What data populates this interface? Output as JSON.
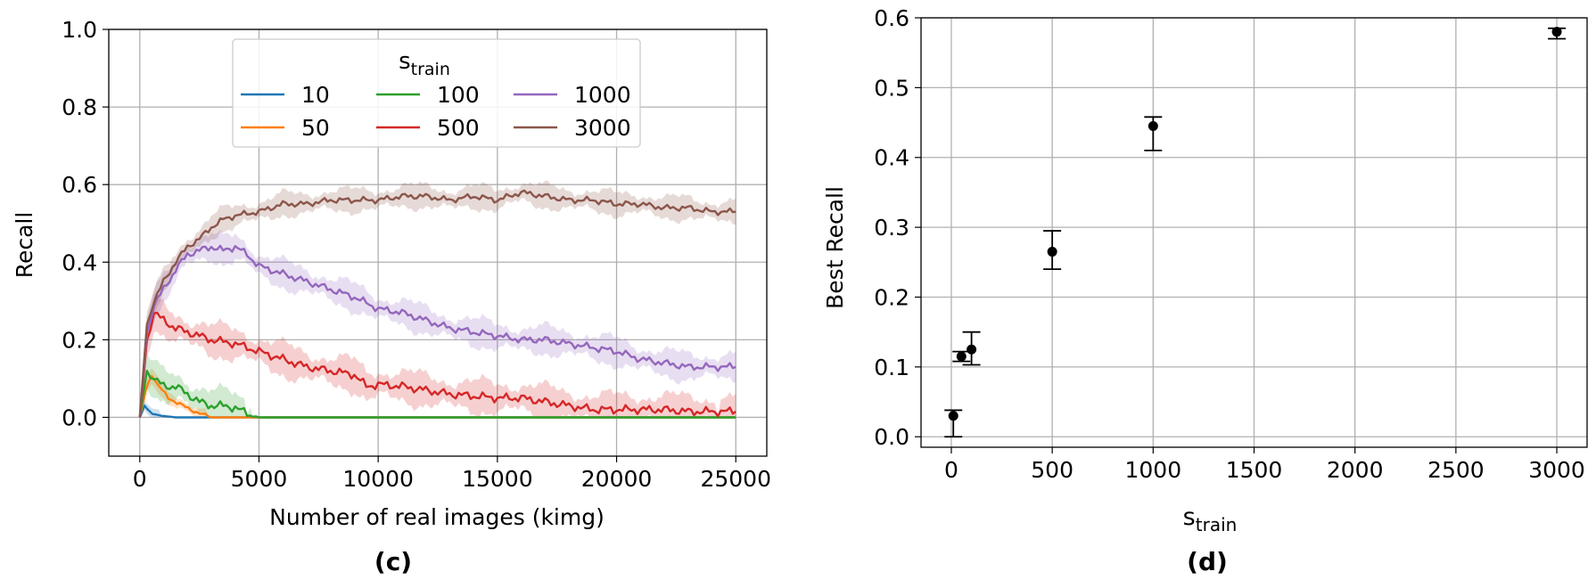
{
  "chart_data": [
    {
      "panel": "(c)",
      "type": "line",
      "xlabel": "Number of real images (kimg)",
      "ylabel": "Recall",
      "xlim": [
        -1300,
        26300
      ],
      "ylim": [
        -0.1,
        1.0
      ],
      "xticks": [
        0,
        5000,
        10000,
        15000,
        20000,
        25000
      ],
      "yticks": [
        0.0,
        0.2,
        0.4,
        0.6,
        0.8,
        1.0
      ],
      "ytick_labels": [
        "0.0",
        "0.2",
        "0.4",
        "0.6",
        "0.8",
        "1.0"
      ],
      "grid": true,
      "legend": {
        "title_main": "s",
        "title_sub": "train",
        "location": "upper-center",
        "columns": 3
      },
      "series": [
        {
          "name": "10",
          "color": "#1f77b4",
          "x": [
            0,
            200,
            400,
            800,
            1500,
            2500,
            25000
          ],
          "y": [
            0.0,
            0.03,
            0.015,
            0.005,
            0.0,
            0.0,
            0.0
          ],
          "band": 0.01
        },
        {
          "name": "50",
          "color": "#ff7f0e",
          "x": [
            0,
            250,
            500,
            800,
            1200,
            1800,
            2500,
            3000,
            25000
          ],
          "y": [
            0.0,
            0.07,
            0.11,
            0.08,
            0.05,
            0.03,
            0.01,
            0.0,
            0.0
          ],
          "band": 0.015
        },
        {
          "name": "100",
          "color": "#2ca02c",
          "x": [
            0,
            300,
            600,
            1000,
            1500,
            2000,
            2500,
            3000,
            3500,
            4000,
            4500,
            5000,
            25000
          ],
          "y": [
            0.0,
            0.12,
            0.1,
            0.08,
            0.08,
            0.06,
            0.04,
            0.03,
            0.03,
            0.025,
            0.01,
            0.0,
            0.0
          ],
          "band": 0.035
        },
        {
          "name": "500",
          "color": "#d62728",
          "x": [
            0,
            300,
            600,
            1000,
            1500,
            2000,
            3000,
            4000,
            5000,
            6000,
            7000,
            8000,
            9000,
            9500,
            10000,
            11000,
            12000,
            13000,
            14000,
            15000,
            16000,
            17000,
            18000,
            19000,
            20000,
            21000,
            22000,
            23000,
            24000,
            25000
          ],
          "y": [
            0.0,
            0.2,
            0.27,
            0.25,
            0.23,
            0.22,
            0.2,
            0.19,
            0.17,
            0.15,
            0.13,
            0.12,
            0.11,
            0.08,
            0.085,
            0.08,
            0.07,
            0.06,
            0.055,
            0.05,
            0.05,
            0.04,
            0.03,
            0.02,
            0.02,
            0.02,
            0.02,
            0.015,
            0.015,
            0.015
          ],
          "band": 0.035
        },
        {
          "name": "1000",
          "color": "#9467bd",
          "x": [
            0,
            300,
            600,
            1000,
            1500,
            2000,
            2500,
            3000,
            3500,
            4000,
            4500,
            5000,
            6000,
            7000,
            8000,
            9000,
            10000,
            11000,
            12000,
            13000,
            14000,
            15000,
            16000,
            17000,
            18000,
            19000,
            20000,
            21000,
            22000,
            23000,
            24000,
            25000
          ],
          "y": [
            0.0,
            0.22,
            0.29,
            0.33,
            0.38,
            0.42,
            0.43,
            0.44,
            0.43,
            0.44,
            0.42,
            0.39,
            0.37,
            0.35,
            0.33,
            0.31,
            0.28,
            0.27,
            0.25,
            0.23,
            0.22,
            0.21,
            0.2,
            0.2,
            0.19,
            0.18,
            0.17,
            0.15,
            0.14,
            0.13,
            0.13,
            0.13
          ],
          "band": 0.03
        },
        {
          "name": "3000",
          "color": "#8c564b",
          "x": [
            0,
            300,
            600,
            1000,
            1500,
            2000,
            2500,
            3000,
            3500,
            4000,
            5000,
            6000,
            7000,
            8000,
            9000,
            10000,
            11000,
            12000,
            13000,
            14000,
            15000,
            16000,
            17000,
            18000,
            19000,
            20000,
            21000,
            22000,
            23000,
            24000,
            25000
          ],
          "y": [
            0.0,
            0.24,
            0.3,
            0.35,
            0.4,
            0.44,
            0.46,
            0.49,
            0.51,
            0.52,
            0.53,
            0.55,
            0.55,
            0.56,
            0.56,
            0.56,
            0.57,
            0.57,
            0.56,
            0.57,
            0.56,
            0.58,
            0.57,
            0.56,
            0.56,
            0.55,
            0.55,
            0.54,
            0.54,
            0.53,
            0.53
          ],
          "band": 0.025
        }
      ]
    },
    {
      "panel": "(d)",
      "type": "scatter",
      "xlabel_main": "s",
      "xlabel_sub": "train",
      "ylabel": "Best Recall",
      "xlim": [
        -150,
        3150
      ],
      "ylim": [
        -0.015,
        0.6
      ],
      "xticks": [
        0,
        500,
        1000,
        1500,
        2000,
        2500,
        3000
      ],
      "yticks": [
        0.0,
        0.1,
        0.2,
        0.3,
        0.4,
        0.5,
        0.6
      ],
      "ytick_labels": [
        "0.0",
        "0.1",
        "0.2",
        "0.3",
        "0.4",
        "0.5",
        "0.6"
      ],
      "grid": true,
      "color": "#000000",
      "points": [
        {
          "x": 10,
          "y": 0.03,
          "lo": 0.0,
          "hi": 0.038
        },
        {
          "x": 50,
          "y": 0.115,
          "lo": 0.108,
          "hi": 0.122
        },
        {
          "x": 100,
          "y": 0.125,
          "lo": 0.103,
          "hi": 0.15
        },
        {
          "x": 500,
          "y": 0.265,
          "lo": 0.24,
          "hi": 0.295
        },
        {
          "x": 1000,
          "y": 0.445,
          "lo": 0.41,
          "hi": 0.458
        },
        {
          "x": 3000,
          "y": 0.58,
          "lo": 0.57,
          "hi": 0.585
        }
      ]
    }
  ]
}
